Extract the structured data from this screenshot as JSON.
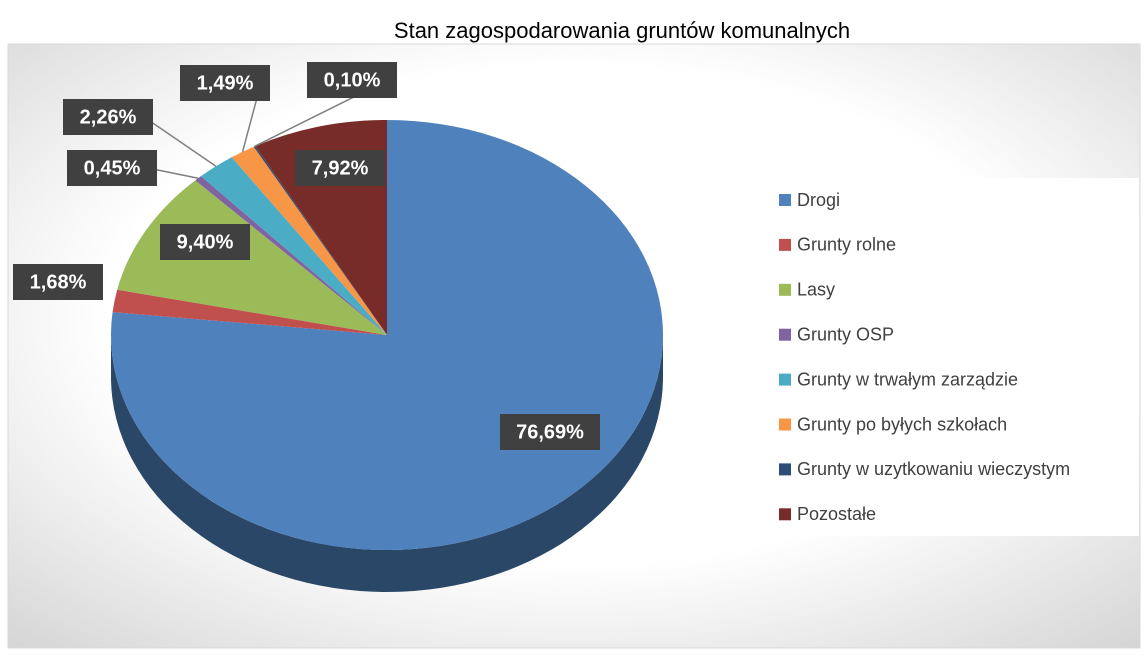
{
  "chart_data": {
    "type": "pie",
    "title": "Stan zagospodarowania gruntów komunalnych",
    "categories": [
      "Drogi",
      "Grunty rolne",
      "Lasy",
      "Grunty OSP",
      "Grunty w trwałym zarządzie",
      "Grunty po byłych szkołach",
      "Grunty w uzytkowaniu wieczystym",
      "Pozostałe"
    ],
    "values": [
      76.69,
      1.68,
      9.4,
      0.45,
      2.26,
      1.49,
      0.1,
      7.92
    ],
    "value_labels": [
      "76,69%",
      "1,68%",
      "9,40%",
      "0,45%",
      "2,26%",
      "1,49%",
      "0,10%",
      "7,92%"
    ],
    "colors": [
      "#4f81bd",
      "#c0504d",
      "#9bbb59",
      "#8064a2",
      "#4bacc6",
      "#f79646",
      "#2c4d75",
      "#772c2a"
    ],
    "legend": "right"
  }
}
